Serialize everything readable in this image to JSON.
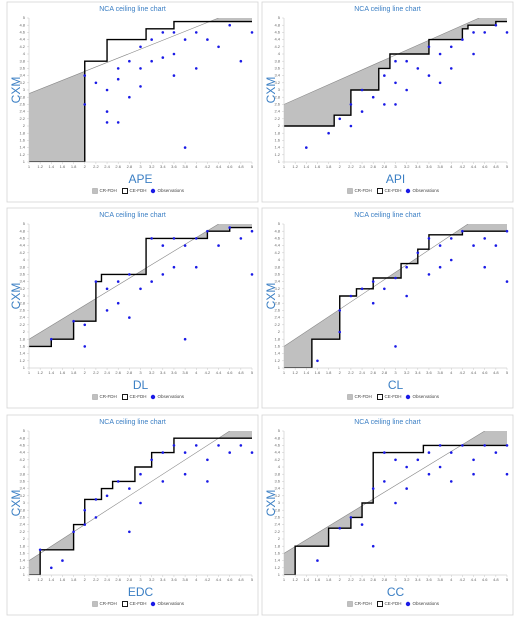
{
  "chart_data": [
    {
      "type": "scatter",
      "title": "NCA ceiling line chart",
      "x_label": "APE",
      "y_label": "CXM",
      "xlim": [
        1,
        5
      ],
      "ylim": [
        1,
        5
      ],
      "xticks": [
        1,
        1.2,
        1.4,
        1.6,
        1.8,
        2,
        2.2,
        2.4,
        2.6,
        2.8,
        3,
        3.2,
        3.4,
        3.6,
        3.8,
        4,
        4.2,
        4.4,
        4.6,
        4.8,
        5
      ],
      "yticks": [
        1,
        1.2,
        1.4,
        1.6,
        1.8,
        2,
        2.2,
        2.4,
        2.6,
        2.8,
        3,
        3.2,
        3.4,
        3.6,
        3.8,
        4,
        4.2,
        4.4,
        4.6,
        4.8,
        5
      ],
      "series": [
        {
          "name": "CR-FDH",
          "color": "#c0c0c0",
          "x": [
            1,
            4.4
          ],
          "values": [
            2.9,
            5
          ]
        },
        {
          "name": "CE-FDH",
          "color": "#000000",
          "x": [
            1,
            2,
            2,
            2.4,
            2.4,
            3.1,
            3.1,
            3.6,
            3.6,
            5
          ],
          "values": [
            1,
            1,
            3.8,
            3.8,
            4.4,
            4.4,
            4.7,
            4.7,
            4.9,
            4.9
          ]
        },
        {
          "name": "Observations",
          "color": "#1a1ae6",
          "x": [
            2,
            2,
            2.2,
            2.4,
            2.4,
            2.4,
            2.6,
            2.6,
            2.6,
            2.8,
            2.8,
            3,
            3,
            3,
            3.2,
            3.2,
            3.4,
            3.4,
            3.6,
            3.6,
            3.6,
            3.8,
            3.8,
            4,
            4,
            4.2,
            4.4,
            4.6,
            4.8,
            5
          ],
          "values": [
            2.6,
            3.4,
            3.2,
            3,
            2.4,
            2.1,
            3.6,
            3.3,
            2.1,
            3.8,
            2.8,
            4.2,
            3.6,
            3.1,
            4.4,
            3.8,
            4.6,
            3.9,
            4.6,
            4,
            3.4,
            4.4,
            1.4,
            4.6,
            3.6,
            4.4,
            4.2,
            4.8,
            3.8,
            4.6
          ]
        }
      ]
    },
    {
      "type": "scatter",
      "title": "NCA ceiling line chart",
      "x_label": "API",
      "y_label": "CXM",
      "xlim": [
        1,
        5
      ],
      "ylim": [
        1,
        5
      ],
      "xticks": [
        1,
        1.2,
        1.4,
        1.6,
        1.8,
        2,
        2.2,
        2.4,
        2.6,
        2.8,
        3,
        3.2,
        3.4,
        3.6,
        3.8,
        4,
        4.2,
        4.4,
        4.6,
        4.8,
        5
      ],
      "yticks": [
        1,
        1.2,
        1.4,
        1.6,
        1.8,
        2,
        2.2,
        2.4,
        2.6,
        2.8,
        3,
        3.2,
        3.4,
        3.6,
        3.8,
        4,
        4.2,
        4.4,
        4.6,
        4.8,
        5
      ],
      "series": [
        {
          "name": "CR-FDH",
          "color": "#c0c0c0",
          "x": [
            1,
            4.5
          ],
          "values": [
            2.6,
            5
          ]
        },
        {
          "name": "CE-FDH",
          "color": "#000000",
          "x": [
            1,
            1.9,
            1.9,
            2.2,
            2.2,
            2.7,
            2.7,
            2.9,
            2.9,
            3.6,
            3.6,
            4.2,
            4.2,
            4.3,
            4.3,
            4.8,
            4.8,
            5
          ],
          "values": [
            2,
            2,
            2.3,
            2.3,
            3,
            3,
            3.6,
            3.6,
            4,
            4,
            4.4,
            4.4,
            4.7,
            4.7,
            4.8,
            4.8,
            4.9,
            4.9
          ]
        },
        {
          "name": "Observations",
          "color": "#1a1ae6",
          "x": [
            1.4,
            1.8,
            2,
            2.2,
            2.2,
            2.4,
            2.4,
            2.6,
            2.8,
            2.8,
            3,
            3,
            3,
            3.2,
            3.2,
            3.4,
            3.6,
            3.6,
            3.8,
            3.8,
            4,
            4,
            4.2,
            4.4,
            4.4,
            4.6,
            4.8,
            5
          ],
          "values": [
            1.4,
            1.8,
            2.2,
            2.6,
            2,
            3,
            2.4,
            2.8,
            3.4,
            2.6,
            3.8,
            3.2,
            2.6,
            3.8,
            3,
            3.6,
            4.2,
            3.4,
            4,
            3.2,
            4.2,
            3.6,
            4.4,
            4.6,
            4,
            4.6,
            4.8,
            4.6
          ]
        }
      ]
    },
    {
      "type": "scatter",
      "title": "NCA ceiling line chart",
      "x_label": "DL",
      "y_label": "CXM",
      "xlim": [
        1,
        5
      ],
      "ylim": [
        1,
        5
      ],
      "xticks": [
        1,
        1.2,
        1.4,
        1.6,
        1.8,
        2,
        2.2,
        2.4,
        2.6,
        2.8,
        3,
        3.2,
        3.4,
        3.6,
        3.8,
        4,
        4.2,
        4.4,
        4.6,
        4.8,
        5
      ],
      "yticks": [
        1,
        1.2,
        1.4,
        1.6,
        1.8,
        2,
        2.2,
        2.4,
        2.6,
        2.8,
        3,
        3.2,
        3.4,
        3.6,
        3.8,
        4,
        4.2,
        4.4,
        4.6,
        4.8,
        5
      ],
      "series": [
        {
          "name": "CR-FDH",
          "color": "#c0c0c0",
          "x": [
            1,
            4.4
          ],
          "values": [
            1.8,
            5
          ]
        },
        {
          "name": "CE-FDH",
          "color": "#000000",
          "x": [
            1,
            1.4,
            1.4,
            1.8,
            1.8,
            2.2,
            2.2,
            2.3,
            2.3,
            3.1,
            3.1,
            4.2,
            4.2,
            4.6,
            4.6,
            5
          ],
          "values": [
            1.6,
            1.6,
            1.8,
            1.8,
            2.3,
            2.3,
            3.4,
            3.4,
            3.6,
            3.6,
            4.6,
            4.6,
            4.8,
            4.8,
            4.9,
            4.9
          ]
        },
        {
          "name": "Observations",
          "color": "#1a1ae6",
          "x": [
            1.4,
            1.8,
            2,
            2,
            2.2,
            2.4,
            2.4,
            2.6,
            2.6,
            2.8,
            2.8,
            3,
            3.2,
            3.2,
            3.4,
            3.4,
            3.6,
            3.6,
            3.8,
            3.8,
            4,
            4,
            4.2,
            4.4,
            4.6,
            4.8,
            5,
            5
          ],
          "values": [
            1.8,
            2.3,
            1.6,
            2.2,
            3.4,
            3.2,
            2.6,
            3.4,
            2.8,
            3.6,
            2.4,
            3.2,
            4.6,
            3.4,
            4.4,
            3.6,
            4.6,
            3.8,
            4.4,
            1.8,
            4.6,
            3.8,
            4.8,
            4.4,
            4.9,
            4.6,
            4.8,
            3.6
          ]
        }
      ]
    },
    {
      "type": "scatter",
      "title": "NCA ceiling line chart",
      "x_label": "CL",
      "y_label": "CXM",
      "xlim": [
        1,
        5
      ],
      "ylim": [
        1,
        5
      ],
      "xticks": [
        1,
        1.2,
        1.4,
        1.6,
        1.8,
        2,
        2.2,
        2.4,
        2.6,
        2.8,
        3,
        3.2,
        3.4,
        3.6,
        3.8,
        4,
        4.2,
        4.4,
        4.6,
        4.8,
        5
      ],
      "yticks": [
        1,
        1.2,
        1.4,
        1.6,
        1.8,
        2,
        2.2,
        2.4,
        2.6,
        2.8,
        3,
        3.2,
        3.4,
        3.6,
        3.8,
        4,
        4.2,
        4.4,
        4.6,
        4.8,
        5
      ],
      "series": [
        {
          "name": "CR-FDH",
          "color": "#c0c0c0",
          "x": [
            1,
            4.3
          ],
          "values": [
            1.6,
            5
          ]
        },
        {
          "name": "CE-FDH",
          "color": "#000000",
          "x": [
            1,
            1.5,
            1.5,
            2,
            2,
            2.3,
            2.3,
            2.6,
            2.6,
            3.1,
            3.1,
            3.4,
            3.4,
            3.6,
            3.6,
            4.2,
            4.2,
            5
          ],
          "values": [
            1,
            1,
            1.8,
            1.8,
            3,
            3,
            3.2,
            3.2,
            3.5,
            3.5,
            3.9,
            3.9,
            4.3,
            4.3,
            4.7,
            4.7,
            4.8,
            4.8
          ]
        },
        {
          "name": "Observations",
          "color": "#1a1ae6",
          "x": [
            1.6,
            2,
            2,
            2.2,
            2.4,
            2.6,
            2.6,
            2.8,
            3,
            3,
            3.2,
            3.2,
            3.4,
            3.6,
            3.6,
            3.8,
            3.8,
            4,
            4,
            4.2,
            4.4,
            4.6,
            4.6,
            4.8,
            5,
            5
          ],
          "values": [
            1.2,
            2.6,
            2,
            3,
            3.2,
            3.4,
            2.8,
            3.2,
            3.5,
            1.6,
            3.8,
            3,
            4.2,
            4.6,
            3.6,
            4.4,
            3.8,
            4.6,
            4,
            4.8,
            4.4,
            4.6,
            3.8,
            4.4,
            4.8,
            3.4
          ]
        }
      ]
    },
    {
      "type": "scatter",
      "title": "NCA ceiling line chart",
      "x_label": "EDC",
      "y_label": "CXM",
      "xlim": [
        1,
        5
      ],
      "ylim": [
        1,
        5
      ],
      "xticks": [
        1,
        1.2,
        1.4,
        1.6,
        1.8,
        2,
        2.2,
        2.4,
        2.6,
        2.8,
        3,
        3.2,
        3.4,
        3.6,
        3.8,
        4,
        4.2,
        4.4,
        4.6,
        4.8,
        5
      ],
      "yticks": [
        1,
        1.2,
        1.4,
        1.6,
        1.8,
        2,
        2.2,
        2.4,
        2.6,
        2.8,
        3,
        3.2,
        3.4,
        3.6,
        3.8,
        4,
        4.2,
        4.4,
        4.6,
        4.8,
        5
      ],
      "series": [
        {
          "name": "CR-FDH",
          "color": "#c0c0c0",
          "x": [
            1,
            4.6
          ],
          "values": [
            1.4,
            5
          ]
        },
        {
          "name": "CE-FDH",
          "color": "#000000",
          "x": [
            1,
            1.2,
            1.2,
            1.8,
            1.8,
            2,
            2,
            2.3,
            2.3,
            2.5,
            2.5,
            2.9,
            2.9,
            3.2,
            3.2,
            3.6,
            3.6,
            5
          ],
          "values": [
            1,
            1,
            1.7,
            1.7,
            2.4,
            2.4,
            3.1,
            3.1,
            3.4,
            3.4,
            3.6,
            3.6,
            4,
            4,
            4.4,
            4.4,
            4.8,
            4.8
          ]
        },
        {
          "name": "Observations",
          "color": "#1a1ae6",
          "x": [
            1.2,
            1.4,
            1.6,
            1.8,
            2,
            2,
            2.2,
            2.2,
            2.4,
            2.6,
            2.8,
            2.8,
            3,
            3,
            3.2,
            3.4,
            3.4,
            3.6,
            3.8,
            3.8,
            4,
            4.2,
            4.2,
            4.4,
            4.6,
            4.8,
            5
          ],
          "values": [
            1.7,
            1.2,
            1.4,
            2.2,
            2.4,
            2.8,
            3.1,
            2.6,
            3.2,
            3.6,
            3.4,
            2.2,
            3.8,
            3,
            4.2,
            4.4,
            3.6,
            4.6,
            4.4,
            3.8,
            4.6,
            4.2,
            3.6,
            4.6,
            4.4,
            4.6,
            4.4
          ]
        }
      ]
    },
    {
      "type": "scatter",
      "title": "NCA ceiling line chart",
      "x_label": "CC",
      "y_label": "CXM",
      "xlim": [
        1,
        5
      ],
      "ylim": [
        1,
        5
      ],
      "xticks": [
        1,
        1.2,
        1.4,
        1.6,
        1.8,
        2,
        2.2,
        2.4,
        2.6,
        2.8,
        3,
        3.2,
        3.4,
        3.6,
        3.8,
        4,
        4.2,
        4.4,
        4.6,
        4.8,
        5
      ],
      "yticks": [
        1,
        1.2,
        1.4,
        1.6,
        1.8,
        2,
        2.2,
        2.4,
        2.6,
        2.8,
        3,
        3.2,
        3.4,
        3.6,
        3.8,
        4,
        4.2,
        4.4,
        4.6,
        4.8,
        5
      ],
      "series": [
        {
          "name": "CR-FDH",
          "color": "#c0c0c0",
          "x": [
            1,
            4.6
          ],
          "values": [
            1.6,
            5
          ]
        },
        {
          "name": "CE-FDH",
          "color": "#000000",
          "x": [
            1,
            1.2,
            1.2,
            1.8,
            1.8,
            2.2,
            2.2,
            2.4,
            2.4,
            2.6,
            2.6,
            3.5,
            3.5,
            5
          ],
          "values": [
            1,
            1,
            1.8,
            1.8,
            2.3,
            2.3,
            2.6,
            2.6,
            3,
            3,
            4.4,
            4.4,
            4.6,
            4.6
          ]
        },
        {
          "name": "Observations",
          "color": "#1a1ae6",
          "x": [
            1.6,
            2,
            2.2,
            2.4,
            2.6,
            2.6,
            2.8,
            2.8,
            3,
            3,
            3.2,
            3.2,
            3.4,
            3.6,
            3.6,
            3.8,
            3.8,
            4,
            4,
            4.2,
            4.4,
            4.4,
            4.6,
            4.8,
            5,
            5
          ],
          "values": [
            1.4,
            2.3,
            2.6,
            2.4,
            3.4,
            1.8,
            4.4,
            3.6,
            4.2,
            3,
            4,
            3.4,
            4.2,
            4.4,
            3.8,
            4.6,
            4,
            4.4,
            3.6,
            4.6,
            4.2,
            3.8,
            4.6,
            4.4,
            4.6,
            3.8
          ]
        }
      ]
    }
  ]
}
